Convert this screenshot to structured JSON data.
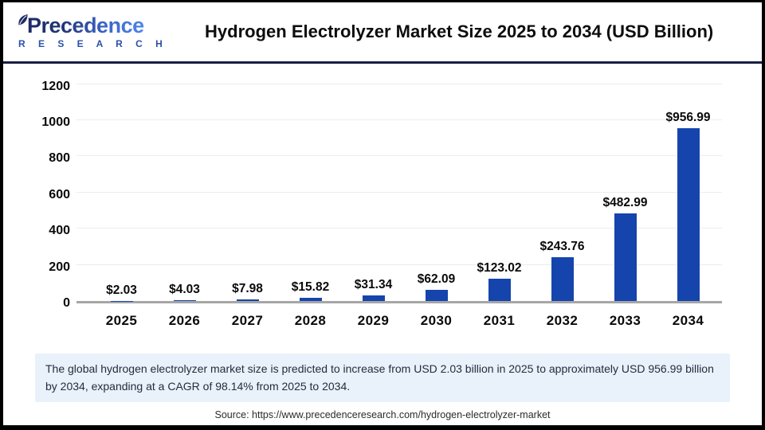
{
  "header": {
    "brand_name": "Precedence",
    "brand_sub": "R E S E A R C H",
    "title": "Hydrogen Electrolyzer Market Size 2025 to 2034 (USD Billion)"
  },
  "chart_data": {
    "type": "bar",
    "title": "Hydrogen Electrolyzer Market Size 2025 to 2034 (USD Billion)",
    "categories": [
      "2025",
      "2026",
      "2027",
      "2028",
      "2029",
      "2030",
      "2031",
      "2032",
      "2033",
      "2034"
    ],
    "values": [
      2.03,
      4.03,
      7.98,
      15.82,
      31.34,
      62.09,
      123.02,
      243.76,
      482.99,
      956.99
    ],
    "value_labels": [
      "$2.03",
      "$4.03",
      "$7.98",
      "$15.82",
      "$31.34",
      "$62.09",
      "$123.02",
      "$243.76",
      "$482.99",
      "$956.99"
    ],
    "xlabel": "",
    "ylabel": "",
    "ylim": [
      0,
      1200
    ],
    "yticks": [
      0,
      200,
      400,
      600,
      800,
      1000,
      1200
    ],
    "grid": true,
    "legend": "none",
    "bar_color": "#1544ac"
  },
  "summary": {
    "text": "The global hydrogen electrolyzer market size is predicted to increase from USD 2.03 billion in 2025 to approximately USD 956.99 billion by 2034, expanding at a CAGR of 98.14% from 2025 to 2034."
  },
  "source": {
    "text": "Source: https://www.precedenceresearch.com/hydrogen-electrolyzer-market"
  },
  "icons": {
    "brand_leaf": "leaf-icon"
  },
  "colors": {
    "bar": "#1544ac",
    "header_divider": "#171e45",
    "summary_background": "#e9f1fb",
    "axis_baseline": "#a6a6a6",
    "gridline": "#ececec"
  }
}
